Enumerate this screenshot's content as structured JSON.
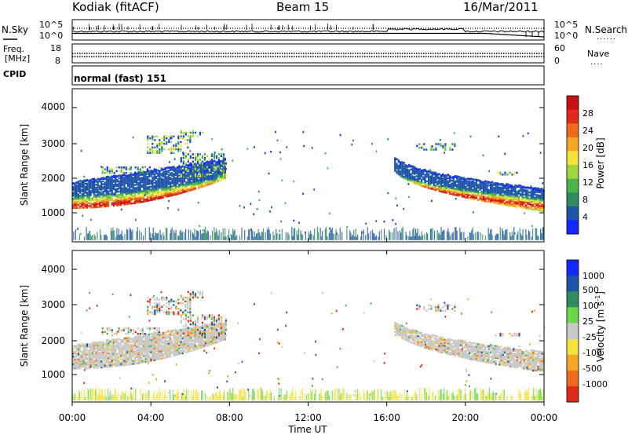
{
  "header": {
    "radar": "Kodiak (fitACF)",
    "beam": "Beam 15",
    "date": "16/Mar/2011"
  },
  "noise_panel": {
    "left_label": "N.Sky",
    "right_label": "N.Search",
    "left_ticks": [
      "10^5",
      "10^0"
    ],
    "right_ticks": [
      "10^5",
      "10^0"
    ],
    "legend_dots": "......"
  },
  "freq_panel": {
    "left_label_lines": [
      "Freq.",
      "[MHz]"
    ],
    "left_ticks": [
      "18",
      "8"
    ],
    "right_label": "Nave",
    "right_ticks": [
      "60",
      "0"
    ],
    "legend_dots": "...."
  },
  "cpid": {
    "label": "CPID",
    "value": "normal (fast) 151"
  },
  "time_axis": {
    "title": "Time UT",
    "ticks": [
      "00:00",
      "04:00",
      "08:00",
      "12:00",
      "16:00",
      "20:00",
      "00:00"
    ]
  },
  "chart_data": [
    {
      "type": "heatmap",
      "panel": "power",
      "ylabel": "Slant Range [km]",
      "yticks": [
        "1000",
        "2000",
        "3000",
        "4000"
      ],
      "ylim": [
        0,
        4600
      ],
      "xlim_hours": [
        0,
        24
      ],
      "colorbar": {
        "title": "Power [dB]",
        "ticks": [
          "4",
          "8",
          "12",
          "16",
          "20",
          "24",
          "28"
        ],
        "range": [
          0,
          30
        ],
        "colors": [
          "#1428ff",
          "#1f55a8",
          "#2e8c5e",
          "#4ab54a",
          "#9ed93c",
          "#f5e23b",
          "#f5a623",
          "#ee6a1a",
          "#e02a1a",
          "#c81010"
        ]
      },
      "echo_regions": [
        {
          "name": "morning band",
          "t_start": 0.0,
          "t_end": 7.8,
          "range_low_start": 1050,
          "range_low_end": 2000,
          "range_high_start": 1700,
          "range_high_end": 2500,
          "peak_db": 28
        },
        {
          "name": "evening band",
          "t_start": 16.3,
          "t_end": 24.0,
          "range_low_start": 2400,
          "range_low_end": 1000,
          "range_high_start": 2600,
          "range_high_end": 1500,
          "peak_db": 28
        },
        {
          "name": "near-range ground scatter",
          "t_start": 0.0,
          "t_end": 24.0,
          "range_low_start": 100,
          "range_low_end": 100,
          "range_high_start": 400,
          "range_high_end": 400,
          "peak_db": 10
        }
      ]
    },
    {
      "type": "heatmap",
      "panel": "velocity",
      "ylabel": "Slant Range [km]",
      "yticks": [
        "1000",
        "2000",
        "3000",
        "4000"
      ],
      "ylim": [
        0,
        4600
      ],
      "xlim_hours": [
        0,
        24
      ],
      "colorbar": {
        "title": "Velocity [m s^-1]",
        "ticks": [
          "1000",
          "500",
          "100",
          "25",
          "-25",
          "-100",
          "-500",
          "-1000"
        ],
        "colors": [
          "#1428ff",
          "#1f55a8",
          "#2e8c5e",
          "#6ad84a",
          "#c8c8c8",
          "#f5e23b",
          "#f5a623",
          "#ee6a1a",
          "#e02a1a"
        ]
      },
      "echo_regions": [
        {
          "name": "morning band",
          "t_start": 0.0,
          "t_end": 7.8,
          "dominant": "ground scatter grey"
        },
        {
          "name": "evening band",
          "t_start": 16.3,
          "t_end": 24.0,
          "dominant": "ground scatter grey"
        }
      ]
    }
  ]
}
